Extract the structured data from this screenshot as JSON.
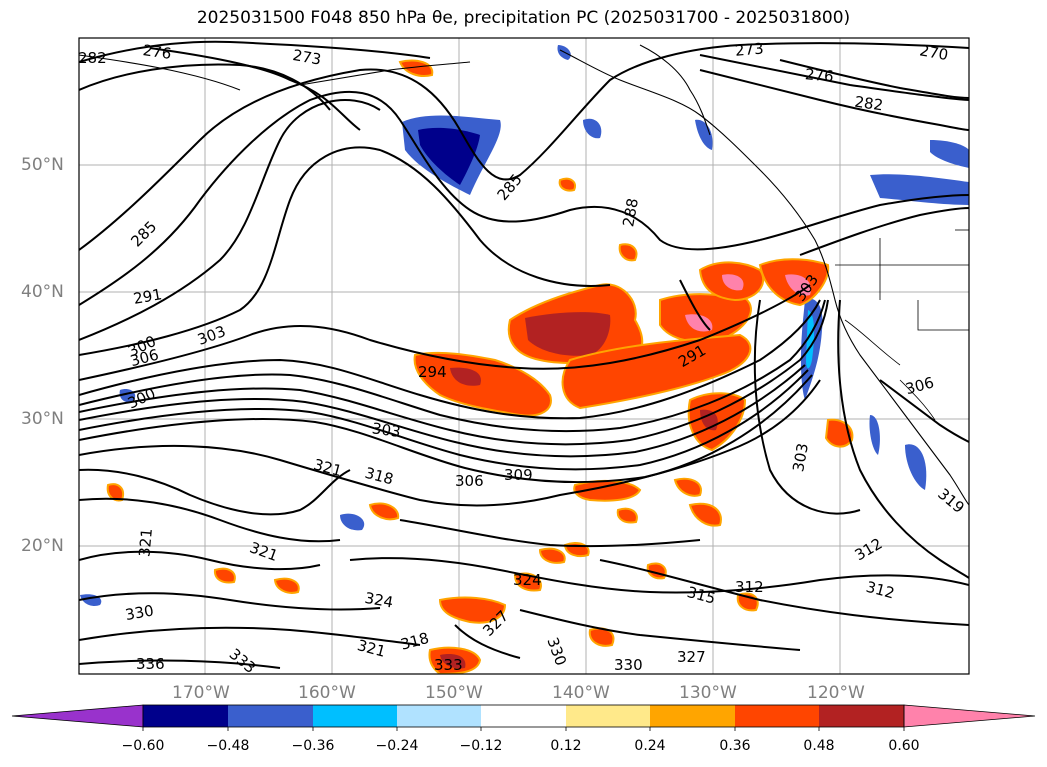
{
  "title": "2025031500 F048 850 hPa θe, precipitation PC (2025031700 - 2025031800)",
  "lat_labels": [
    "50°N",
    "40°N",
    "30°N",
    "20°N"
  ],
  "lon_labels": [
    "170°W",
    "160°W",
    "150°W",
    "140°W",
    "130°W",
    "120°W"
  ],
  "contour_labels": [
    "282",
    "276",
    "273",
    "273",
    "270",
    "276",
    "282",
    "285",
    "285",
    "288",
    "291",
    "303",
    "300",
    "306",
    "300",
    "303",
    "294",
    "291",
    "303",
    "306",
    "309",
    "321",
    "318",
    "303",
    "306",
    "319",
    "312",
    "312",
    "312",
    "315",
    "321",
    "321",
    "324",
    "324",
    "327",
    "330",
    "330",
    "330",
    "327",
    "336",
    "333",
    "321",
    "318",
    "333"
  ],
  "colorbar": {
    "ticks": [
      "−0.60",
      "−0.48",
      "−0.36",
      "−0.24",
      "−0.12",
      "0.12",
      "0.24",
      "0.36",
      "0.48",
      "0.60"
    ],
    "colors": [
      "#9932CC",
      "#00008B",
      "#3A5FCD",
      "#00BFFF",
      "#B0E2FF",
      "#FFFFFF",
      "#FFE98A",
      "#FFA500",
      "#FF4500",
      "#B22222",
      "#FF82AB"
    ]
  }
}
